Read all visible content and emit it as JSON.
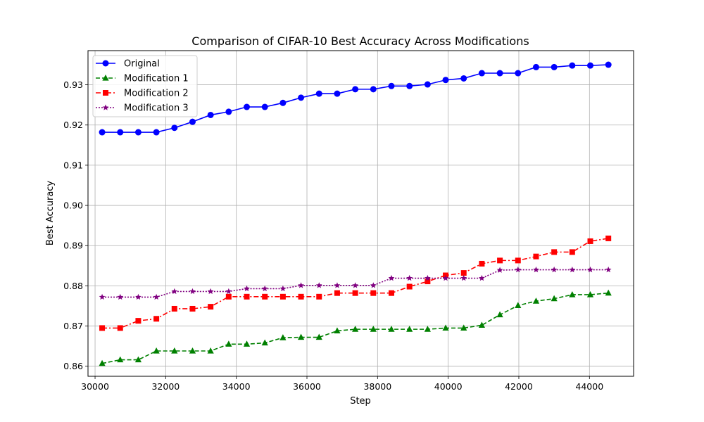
{
  "chart_data": {
    "type": "line",
    "title": "Comparison of CIFAR-10 Best Accuracy Across Modifications",
    "xlabel": "Step",
    "ylabel": "Best Accuracy",
    "xlim": [
      29800,
      45250
    ],
    "ylim": [
      0.8575,
      0.9385
    ],
    "xticks": [
      30000,
      32000,
      34000,
      36000,
      38000,
      40000,
      42000,
      44000
    ],
    "yticks": [
      0.86,
      0.87,
      0.88,
      0.89,
      0.9,
      0.91,
      0.92,
      0.93
    ],
    "ytick_labels": [
      "0.86",
      "0.87",
      "0.88",
      "0.89",
      "0.90",
      "0.91",
      "0.92",
      "0.93"
    ],
    "grid": true,
    "legend_position": "top-left",
    "x": [
      30200,
      30712,
      31224,
      31736,
      32248,
      32760,
      33272,
      33784,
      34296,
      34808,
      35320,
      35832,
      36344,
      36856,
      37368,
      37880,
      38392,
      38904,
      39416,
      39928,
      40440,
      40952,
      41464,
      41976,
      42488,
      43000,
      43512,
      44024,
      44536
    ],
    "series": [
      {
        "name": "Original",
        "color": "#0000ff",
        "marker": "circle",
        "linestyle": "solid",
        "values": [
          0.9182,
          0.9182,
          0.9182,
          0.9182,
          0.9193,
          0.9208,
          0.9225,
          0.9233,
          0.9245,
          0.9245,
          0.9255,
          0.9268,
          0.9278,
          0.9278,
          0.9289,
          0.9289,
          0.9297,
          0.9297,
          0.9301,
          0.9312,
          0.9316,
          0.9329,
          0.9329,
          0.9329,
          0.9344,
          0.9344,
          0.9348,
          0.9348,
          0.935
        ]
      },
      {
        "name": "Modification 1",
        "color": "#008000",
        "marker": "triangle",
        "linestyle": "dashed",
        "values": [
          0.8607,
          0.8616,
          0.8616,
          0.8638,
          0.8638,
          0.8638,
          0.8638,
          0.8655,
          0.8655,
          0.8658,
          0.8671,
          0.8672,
          0.8672,
          0.8688,
          0.8692,
          0.8692,
          0.8692,
          0.8692,
          0.8692,
          0.8695,
          0.8695,
          0.8702,
          0.8728,
          0.8751,
          0.8762,
          0.8768,
          0.8778,
          0.8778,
          0.8782
        ]
      },
      {
        "name": "Modification 2",
        "color": "#ff0000",
        "marker": "square",
        "linestyle": "dashdot",
        "values": [
          0.8695,
          0.8695,
          0.8713,
          0.8718,
          0.8743,
          0.8743,
          0.8748,
          0.8773,
          0.8773,
          0.8773,
          0.8773,
          0.8773,
          0.8773,
          0.8782,
          0.8782,
          0.8782,
          0.8782,
          0.8798,
          0.8811,
          0.8826,
          0.8832,
          0.8855,
          0.8863,
          0.8863,
          0.8873,
          0.8884,
          0.8884,
          0.8911,
          0.8918
        ]
      },
      {
        "name": "Modification 3",
        "color": "#800080",
        "marker": "star",
        "linestyle": "dotted",
        "values": [
          0.8772,
          0.8772,
          0.8772,
          0.8772,
          0.8786,
          0.8786,
          0.8786,
          0.8786,
          0.8793,
          0.8793,
          0.8793,
          0.8801,
          0.8801,
          0.8801,
          0.8801,
          0.8801,
          0.8819,
          0.8819,
          0.8819,
          0.8819,
          0.8819,
          0.8819,
          0.8839,
          0.884,
          0.884,
          0.884,
          0.884,
          0.884,
          0.884
        ]
      }
    ]
  }
}
